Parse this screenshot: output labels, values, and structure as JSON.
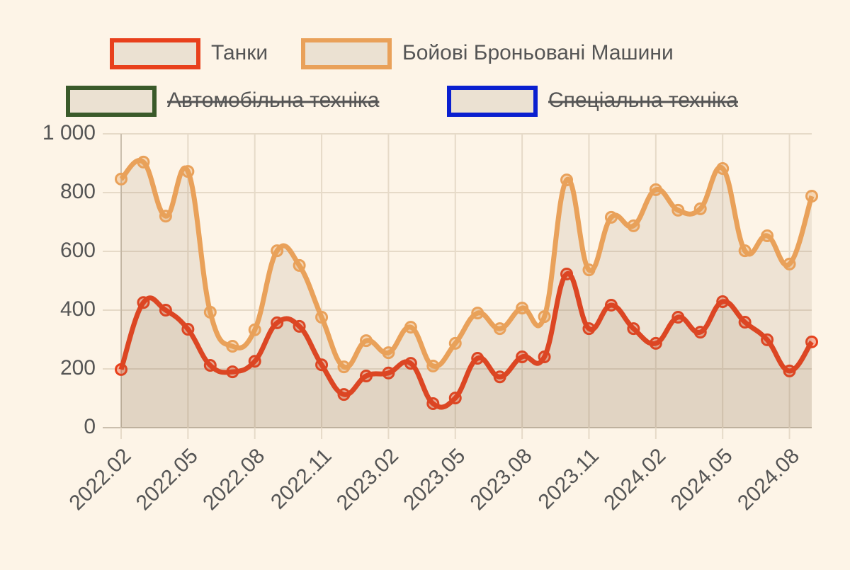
{
  "chart_data": {
    "type": "line",
    "categories": [
      "2022.02",
      null,
      null,
      "2022.05",
      null,
      null,
      "2022.08",
      null,
      null,
      "2022.11",
      null,
      null,
      "2023.02",
      null,
      null,
      "2023.05",
      null,
      null,
      "2023.08",
      null,
      null,
      "2023.11",
      null,
      null,
      "2024.02",
      null,
      null,
      "2024.05",
      null,
      null,
      "2024.08",
      null
    ],
    "series": [
      {
        "name": "Танки",
        "color": "#e8401c",
        "fill": true,
        "values": [
          198,
          426,
          400,
          335,
          212,
          190,
          226,
          357,
          345,
          214,
          113,
          176,
          186,
          219,
          82,
          101,
          236,
          173,
          241,
          241,
          523,
          337,
          417,
          337,
          287,
          376,
          325,
          429,
          359,
          299,
          193,
          292
        ]
      },
      {
        "name": "Бойові Броньовані Машини",
        "color": "#e9a15a",
        "fill": true,
        "values": [
          846,
          904,
          720,
          872,
          393,
          277,
          333,
          602,
          552,
          376,
          207,
          296,
          255,
          342,
          210,
          287,
          390,
          337,
          407,
          378,
          843,
          537,
          716,
          687,
          810,
          740,
          745,
          882,
          602,
          653,
          557,
          788
        ]
      },
      {
        "name": "Автомобільна техніка",
        "color": "#3a5a2a",
        "hidden": true
      },
      {
        "name": "Спеціальна техніка",
        "color": "#0a1fd0",
        "hidden": true
      }
    ],
    "ylim": [
      0,
      1000
    ],
    "yticks": [
      0,
      200,
      400,
      600,
      800,
      {
        "value": 1000,
        "label": "1 000"
      }
    ],
    "grid": true,
    "legend": "top"
  }
}
